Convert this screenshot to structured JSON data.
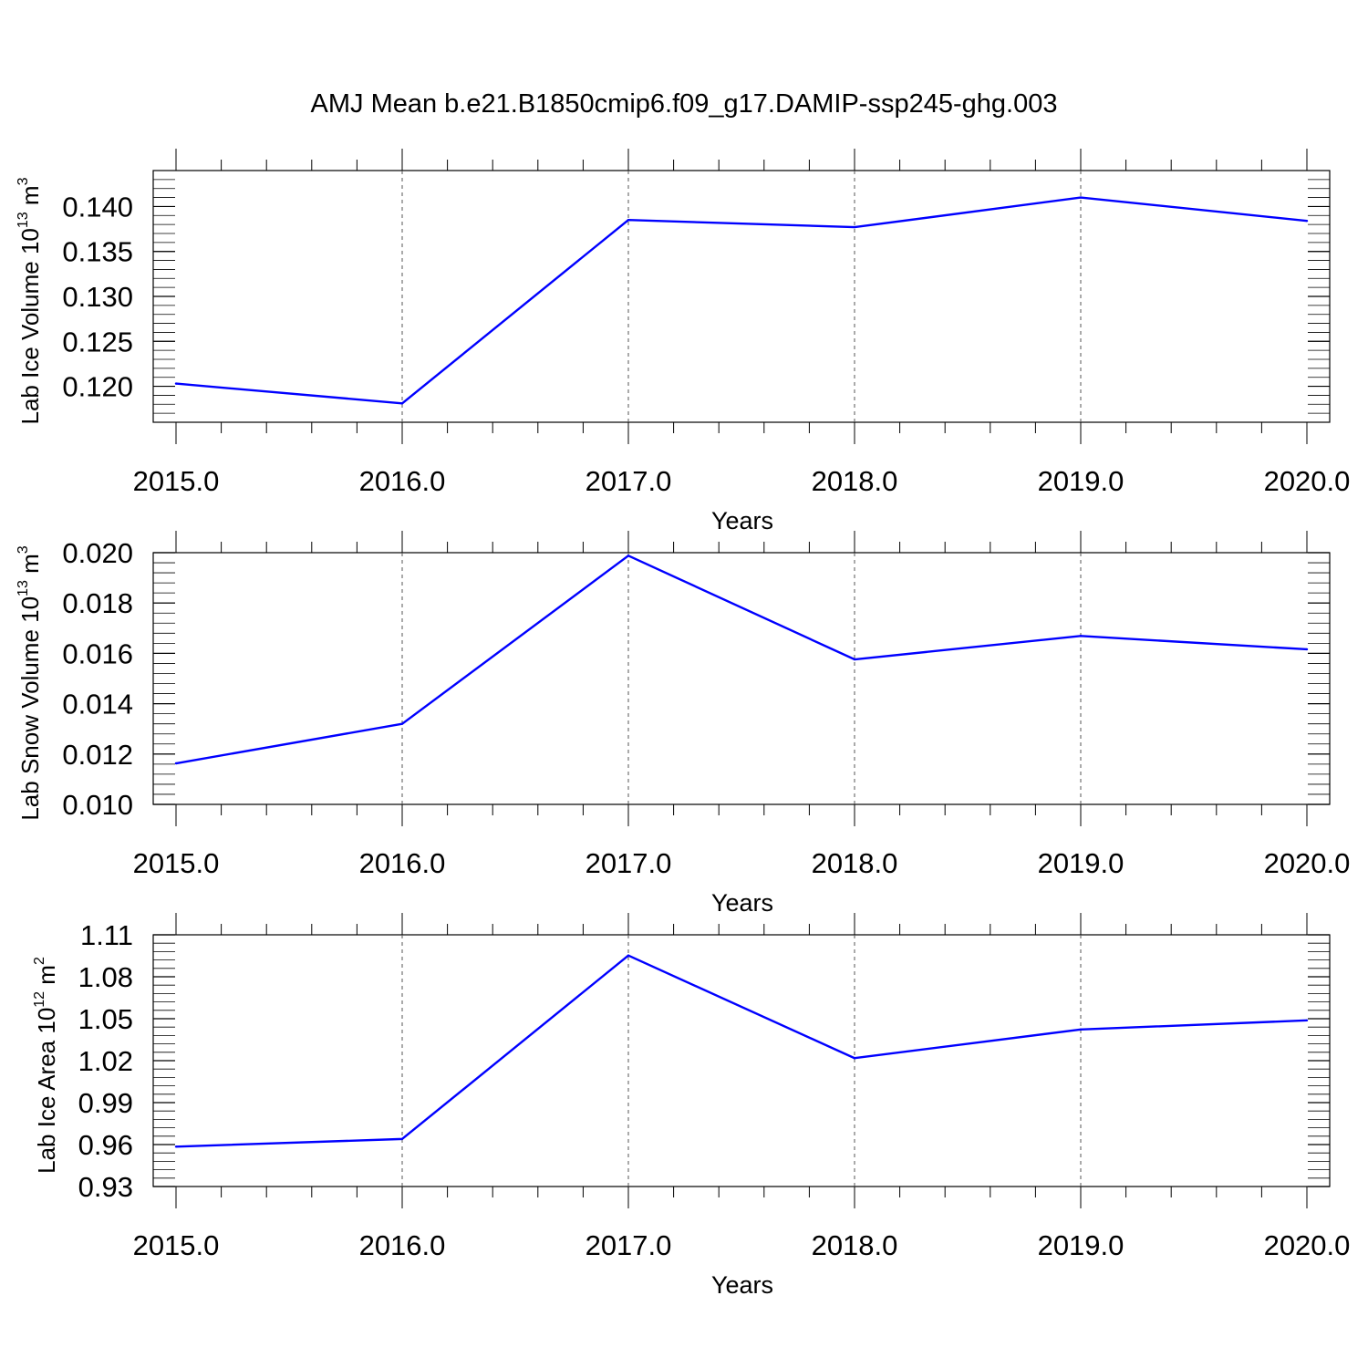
{
  "title": "AMJ Mean b.e21.B1850cmip6.f09_g17.DAMIP-ssp245-ghg.003",
  "line_color": "#0000ff",
  "chart_data": [
    {
      "type": "line",
      "ylabel": "Lab Ice Volume 10",
      "ylabel_exp": "13",
      "ylabel_unit": " m",
      "ylabel_unit_exp": "3",
      "xlabel": "Years",
      "x_ticks": [
        "2015.0",
        "2016.0",
        "2017.0",
        "2018.0",
        "2019.0",
        "2020.0"
      ],
      "y_ticks": [
        "0.120",
        "0.125",
        "0.130",
        "0.135",
        "0.140"
      ],
      "xlim": [
        2015,
        2020
      ],
      "ylim": [
        0.116,
        0.144
      ],
      "x": [
        2015,
        2016,
        2017,
        2018,
        2019,
        2020
      ],
      "values": [
        0.1203,
        0.1181,
        0.1385,
        0.1377,
        0.141,
        0.1384
      ]
    },
    {
      "type": "line",
      "ylabel": "Lab Snow Volume 10",
      "ylabel_exp": "13",
      "ylabel_unit": " m",
      "ylabel_unit_exp": "3",
      "xlabel": "Years",
      "x_ticks": [
        "2015.0",
        "2016.0",
        "2017.0",
        "2018.0",
        "2019.0",
        "2020.0"
      ],
      "y_ticks": [
        "0.010",
        "0.012",
        "0.014",
        "0.016",
        "0.018",
        "0.020"
      ],
      "xlim": [
        2015,
        2020
      ],
      "ylim": [
        0.01,
        0.02
      ],
      "x": [
        2015,
        2016,
        2017,
        2018,
        2019,
        2020
      ],
      "values": [
        0.01163,
        0.0132,
        0.01988,
        0.01576,
        0.01669,
        0.01616
      ]
    },
    {
      "type": "line",
      "ylabel": "Lab Ice Area 10",
      "ylabel_exp": "12",
      "ylabel_unit": " m",
      "ylabel_unit_exp": "2",
      "xlabel": "Years",
      "x_ticks": [
        "2015.0",
        "2016.0",
        "2017.0",
        "2018.0",
        "2019.0",
        "2020.0"
      ],
      "y_ticks": [
        "0.93",
        "0.96",
        "0.99",
        "1.02",
        "1.05",
        "1.08",
        "1.11"
      ],
      "xlim": [
        2015,
        2020
      ],
      "ylim": [
        0.93,
        1.11
      ],
      "x": [
        2015,
        2016,
        2017,
        2018,
        2019,
        2020
      ],
      "values": [
        0.9585,
        0.964,
        1.0952,
        1.0218,
        1.0423,
        1.0488
      ]
    }
  ]
}
